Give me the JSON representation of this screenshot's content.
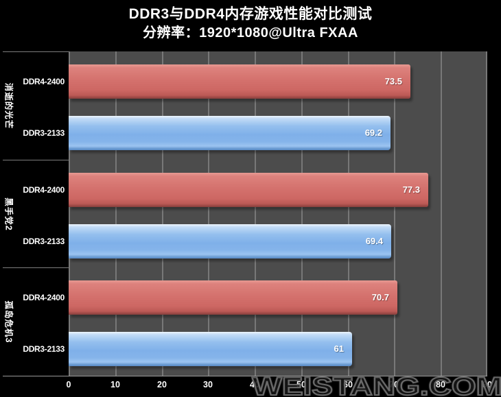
{
  "header": {
    "title": "DDR3与DDR4内存游戏性能对比测试",
    "subtitle": "分辨率：1920*1080@Ultra FXAA"
  },
  "watermark": "WEISTANG.COM",
  "colors": {
    "page_bg": "#000000",
    "plot_bg": "#4c4c4c",
    "gridline": "#787878",
    "text": "#ffffff",
    "ddr4_bar": "#d4716d",
    "ddr3_bar": "#85b4ea"
  },
  "chart_data": {
    "type": "bar",
    "orientation": "horizontal",
    "title": "DDR3与DDR4内存游戏性能对比测试",
    "subtitle": "分辨率：1920*1080@Ultra FXAA",
    "categories": [
      "消逝的光芒",
      "黑手党2",
      "孤岛危机3"
    ],
    "series": [
      {
        "name": "DDR4-2400",
        "color": "#d4716d",
        "values": [
          73.5,
          77.3,
          70.7
        ]
      },
      {
        "name": "DDR3-2133",
        "color": "#85b4ea",
        "values": [
          69.2,
          69.4,
          61
        ]
      }
    ],
    "xlabel": "",
    "ylabel": "",
    "xlim": [
      0,
      90
    ],
    "xticks": [
      0,
      10,
      20,
      30,
      40,
      50,
      60,
      70,
      80,
      90
    ],
    "grid": true,
    "value_labels": true,
    "legend_position": "none"
  }
}
